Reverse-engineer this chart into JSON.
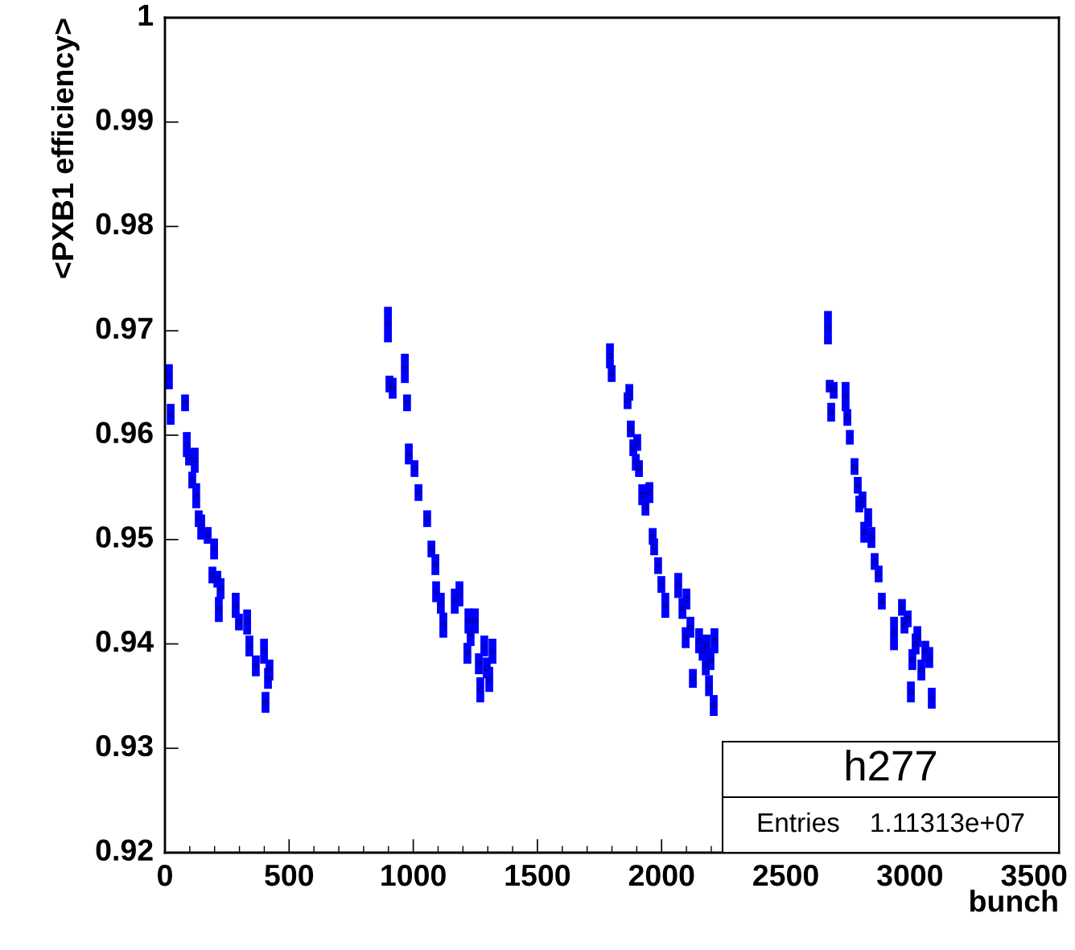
{
  "chart_data": {
    "type": "scatter",
    "xlabel": "bunch",
    "ylabel": "<PXB1 efficiency>",
    "annotations": [
      "h277",
      "Entries    1.11313e+07"
    ],
    "xlim": [
      0,
      3600
    ],
    "ylim": [
      0.92,
      1
    ],
    "xticks": [
      0,
      500,
      1000,
      1500,
      2000,
      2500,
      3000,
      3500
    ],
    "yticks": [
      0.92,
      0.93,
      0.94,
      0.95,
      0.96,
      0.97,
      0.98,
      0.99,
      1
    ],
    "grid": false,
    "marker": "circle",
    "series": [
      {
        "color": "#0000ff",
        "x": [
          16,
          23,
          81,
          88,
          97,
          120,
          110,
          126,
          136,
          146,
          172,
          198,
          191,
          211,
          224,
          217,
          285,
          298,
          331,
          340,
          366,
          399,
          421,
          415,
          405,
          898,
          966,
          904,
          917,
          975,
          982,
          1005,
          1021,
          1056,
          1073,
          1089,
          1092,
          1111,
          1121,
          1186,
          1167,
          1222,
          1248,
          1231,
          1286,
          1218,
          1319,
          1264,
          1296,
          1306,
          1270,
          1792,
          1799,
          1870,
          1863,
          1876,
          1902,
          1886,
          1896,
          1909,
          1922,
          1951,
          1935,
          1964,
          1970,
          1986,
          1999,
          2015,
          2067,
          2100,
          2084,
          2116,
          2097,
          2151,
          2213,
          2165,
          2181,
          2197,
          2178,
          2126,
          2191,
          2210,
          2670,
          2677,
          2693,
          2683,
          2741,
          2748,
          2758,
          2777,
          2790,
          2809,
          2796,
          2832,
          2816,
          2845,
          2858,
          2874,
          2887,
          2936,
          2968,
          2991,
          2978,
          3030,
          3023,
          3062,
          3078,
          3010,
          3046,
          3004,
          3088
        ],
        "values": [
          0.9656,
          0.962,
          0.9631,
          0.9591,
          0.9579,
          0.9576,
          0.9557,
          0.9542,
          0.952,
          0.9512,
          0.9504,
          0.9491,
          0.9466,
          0.9462,
          0.9453,
          0.9433,
          0.9437,
          0.9421,
          0.9421,
          0.9398,
          0.9379,
          0.9393,
          0.9375,
          0.9367,
          0.9344,
          0.9706,
          0.9664,
          0.9649,
          0.9645,
          0.9631,
          0.9582,
          0.9568,
          0.9545,
          0.952,
          0.9491,
          0.9476,
          0.945,
          0.9439,
          0.9418,
          0.9448,
          0.9441,
          0.9422,
          0.9422,
          0.941,
          0.9398,
          0.9391,
          0.9393,
          0.9381,
          0.9377,
          0.9366,
          0.9356,
          0.9676,
          0.9659,
          0.9641,
          0.9633,
          0.9606,
          0.9593,
          0.9588,
          0.9574,
          0.9568,
          0.9543,
          0.9545,
          0.9531,
          0.9503,
          0.9493,
          0.9475,
          0.9457,
          0.9437,
          0.9456,
          0.9443,
          0.9434,
          0.9416,
          0.9406,
          0.9403,
          0.9403,
          0.9394,
          0.9399,
          0.9385,
          0.938,
          0.9367,
          0.936,
          0.9341,
          0.9703,
          0.9647,
          0.9643,
          0.9622,
          0.9637,
          0.9617,
          0.9598,
          0.957,
          0.9552,
          0.9538,
          0.9534,
          0.9521,
          0.9507,
          0.9502,
          0.9479,
          0.9467,
          0.9441,
          0.941,
          0.9435,
          0.9424,
          0.9418,
          0.9407,
          0.94,
          0.9393,
          0.9387,
          0.9385,
          0.9375,
          0.9354,
          0.9348
        ],
        "errors": [
          0.0012,
          0.001,
          0.0008,
          0.0012,
          0.0008,
          0.0012,
          0.0008,
          0.0012,
          0.0008,
          0.0012,
          0.0008,
          0.001,
          0.0008,
          0.0008,
          0.001,
          0.0012,
          0.0012,
          0.0008,
          0.0012,
          0.001,
          0.001,
          0.0012,
          0.001,
          0.001,
          0.001,
          0.0017,
          0.0014,
          0.0008,
          0.001,
          0.0008,
          0.001,
          0.0008,
          0.0008,
          0.0008,
          0.0008,
          0.001,
          0.001,
          0.001,
          0.0012,
          0.0012,
          0.0012,
          0.0012,
          0.0012,
          0.0012,
          0.001,
          0.001,
          0.0012,
          0.001,
          0.001,
          0.0012,
          0.0012,
          0.0012,
          0.0008,
          0.0008,
          0.0008,
          0.0008,
          0.0008,
          0.0008,
          0.0008,
          0.0008,
          0.001,
          0.001,
          0.0008,
          0.0008,
          0.0008,
          0.0008,
          0.0008,
          0.0012,
          0.0012,
          0.001,
          0.001,
          0.001,
          0.001,
          0.0012,
          0.0012,
          0.001,
          0.001,
          0.001,
          0.001,
          0.0009,
          0.001,
          0.001,
          0.0016,
          0.0006,
          0.0008,
          0.0009,
          0.0014,
          0.0008,
          0.0007,
          0.0008,
          0.0008,
          0.0008,
          0.0008,
          0.0009,
          0.001,
          0.001,
          0.0008,
          0.0008,
          0.0008,
          0.0016,
          0.0008,
          0.0008,
          0.0008,
          0.001,
          0.001,
          0.001,
          0.001,
          0.001,
          0.001,
          0.001,
          0.001
        ]
      }
    ]
  }
}
